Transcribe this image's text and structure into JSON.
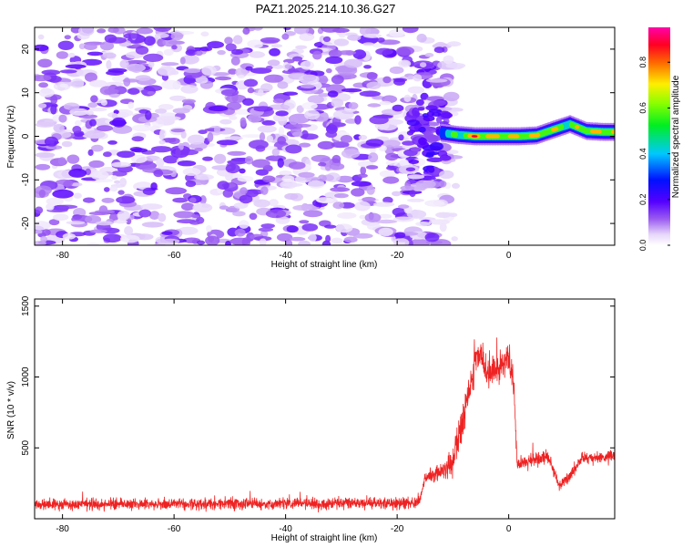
{
  "title": "PAZ1.2025.214.10.36.G27",
  "colors": {
    "snr_line": "#ee2222",
    "axis": "#000000",
    "background": "#ffffff"
  },
  "chart_data": [
    {
      "type": "heatmap",
      "xlabel": "Height of straight line (km)",
      "ylabel": "Frequency (Hz)",
      "xlim": [
        -85,
        19
      ],
      "ylim": [
        -25,
        25
      ],
      "x_ticks": [
        -80,
        -60,
        -40,
        -20,
        0
      ],
      "x_tick_labels": [
        "-80",
        "-60",
        "-40",
        "-20",
        "0"
      ],
      "y_ticks": [
        20,
        10,
        0,
        -10,
        -20
      ],
      "y_tick_labels": [
        "20",
        "10",
        "0",
        "-10",
        "-20"
      ],
      "colorbar": {
        "label": "Normalized spectral amplitude",
        "range": [
          0,
          1
        ],
        "ticks": [
          0.0,
          0.2,
          0.4,
          0.6,
          0.8
        ],
        "tick_labels": [
          "0.0",
          "0.2",
          "0.4",
          "0.6",
          "0.8"
        ],
        "colormap": "rainbow (white-violet-blue-cyan-green-yellow-red-magenta)"
      },
      "features": {
        "noise_region_km": [
          -85,
          -13
        ],
        "noise_amplitude_range": [
          0.0,
          0.2
        ],
        "signal_ridge": [
          {
            "x": -12,
            "y": 0.8,
            "amp": 0.45
          },
          {
            "x": -9,
            "y": 0.3,
            "amp": 0.7
          },
          {
            "x": -6,
            "y": 0.0,
            "amp": 0.95
          },
          {
            "x": -2,
            "y": 0.0,
            "amp": 0.9
          },
          {
            "x": 2,
            "y": 0.0,
            "amp": 0.85
          },
          {
            "x": 5,
            "y": 0.2,
            "amp": 0.9
          },
          {
            "x": 8,
            "y": 1.5,
            "amp": 0.8
          },
          {
            "x": 11,
            "y": 2.8,
            "amp": 0.7
          },
          {
            "x": 14,
            "y": 1.2,
            "amp": 0.9
          },
          {
            "x": 17,
            "y": 1.0,
            "amp": 0.85
          }
        ]
      }
    },
    {
      "type": "line",
      "xlabel": "Height of straight line (km)",
      "ylabel": "SNR (10 * v/v)",
      "xlim": [
        -85,
        19
      ],
      "ylim": [
        0,
        1550
      ],
      "x_ticks": [
        -80,
        -60,
        -40,
        -20,
        0
      ],
      "x_tick_labels": [
        "-80",
        "-60",
        "-40",
        "-20",
        "0"
      ],
      "y_ticks": [
        500,
        1000,
        1500
      ],
      "y_tick_labels": [
        "500",
        "1000",
        "1500"
      ],
      "series": [
        {
          "envelope_x": [
            -85,
            -20,
            -16,
            -15,
            -12,
            -10,
            -8,
            -6,
            -5,
            -4,
            -2,
            0,
            1,
            1.5,
            3,
            5,
            7,
            9,
            11,
            13,
            15,
            17,
            19
          ],
          "envelope_y": [
            100,
            110,
            120,
            280,
            330,
            400,
            750,
            1100,
            1200,
            1000,
            1050,
            1150,
            900,
            380,
            400,
            420,
            450,
            230,
            300,
            420,
            430,
            430,
            450
          ],
          "noise_sd": [
            50,
            50,
            60,
            60,
            90,
            130,
            150,
            150,
            150,
            150,
            150,
            150,
            120,
            50,
            60,
            60,
            60,
            60,
            60,
            55,
            55,
            55,
            55
          ]
        }
      ]
    }
  ]
}
